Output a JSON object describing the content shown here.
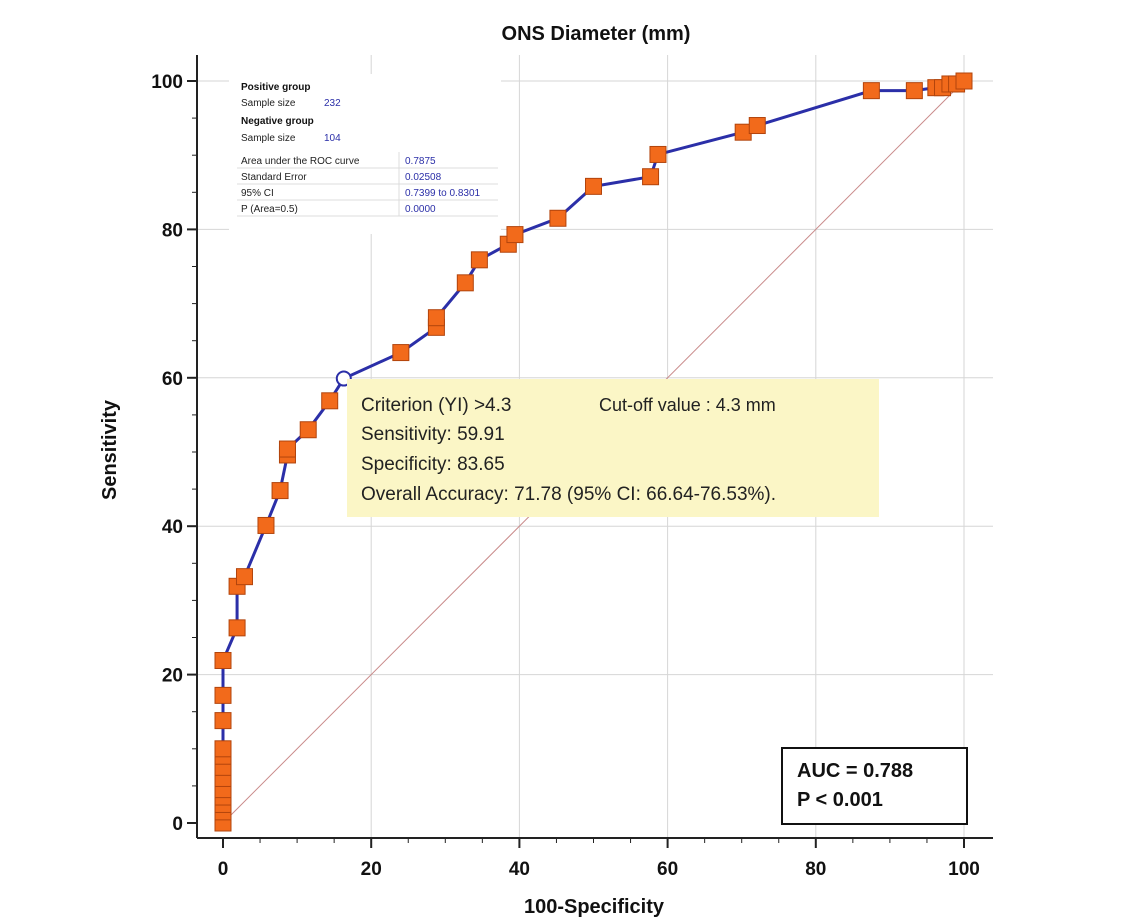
{
  "chart_data": {
    "type": "line",
    "title": "ONS Diameter (mm)",
    "xlabel": "100-Specificity",
    "ylabel": "Sensitivity",
    "xlim": [
      0,
      100
    ],
    "ylim": [
      0,
      100
    ],
    "xticks": [
      "0",
      "20",
      "40",
      "60",
      "80",
      "100"
    ],
    "yticks": [
      "0",
      "20",
      "40",
      "60",
      "80",
      "100"
    ],
    "grid": true,
    "line_color": "#2b2fa8",
    "marker_color": "#f26a1b",
    "reference_line_color": "#c98a8a",
    "series": [
      {
        "points": [
          [
            0,
            0
          ],
          [
            0,
            1.5
          ],
          [
            0,
            2.5
          ],
          [
            0,
            3.5
          ],
          [
            0,
            4.5
          ],
          [
            0,
            6.0
          ],
          [
            0,
            7.5
          ],
          [
            0,
            9.0
          ],
          [
            0,
            10.0
          ],
          [
            0,
            13.8
          ],
          [
            0,
            17.2
          ],
          [
            0,
            21.9
          ],
          [
            1.9,
            26.3
          ],
          [
            1.9,
            31.9
          ],
          [
            2.9,
            33.2
          ],
          [
            5.8,
            40.1
          ],
          [
            7.7,
            44.8
          ],
          [
            8.7,
            49.6
          ],
          [
            8.7,
            50.4
          ],
          [
            11.5,
            53.0
          ],
          [
            14.4,
            56.9
          ],
          [
            16.3,
            59.9
          ],
          [
            24.0,
            63.4
          ],
          [
            28.8,
            66.8
          ],
          [
            28.8,
            68.1
          ],
          [
            32.7,
            72.8
          ],
          [
            34.6,
            75.9
          ],
          [
            38.5,
            78.0
          ],
          [
            39.4,
            79.3
          ],
          [
            45.2,
            81.5
          ],
          [
            50.0,
            85.8
          ],
          [
            57.7,
            87.1
          ],
          [
            58.7,
            90.1
          ],
          [
            70.2,
            93.1
          ],
          [
            72.1,
            94.0
          ],
          [
            87.5,
            98.7
          ],
          [
            93.3,
            98.7
          ],
          [
            96.2,
            99.1
          ],
          [
            97.1,
            99.1
          ],
          [
            98.1,
            99.6
          ],
          [
            99.0,
            99.6
          ],
          [
            100,
            100
          ]
        ]
      }
    ],
    "criterion_point": [
      16.3,
      59.9
    ]
  },
  "stats_table": {
    "positive_header": "Positive group",
    "positive_sample_label": "Sample size",
    "positive_sample_value": "232",
    "negative_header": "Negative group",
    "negative_sample_label": "Sample size",
    "negative_sample_value": "104",
    "rows": [
      {
        "label": "Area under the ROC curve",
        "value": "0.7875"
      },
      {
        "label": "Standard Error",
        "value": "0.02508"
      },
      {
        "label": "95% CI",
        "value": "0.7399 to 0.8301"
      },
      {
        "label": "P (Area=0.5)",
        "value": "0.0000"
      }
    ]
  },
  "annotation": {
    "criterion": "Criterion (YI) >4.3",
    "cutoff": "Cut-off value : 4.3 mm",
    "sensitivity": "Sensitivity: 59.91",
    "specificity": "Specificity: 83.65",
    "accuracy": "Overall Accuracy: 71.78 (95% CI: 66.64-76.53%).",
    "background": "#fbf6c6"
  },
  "auc_box": {
    "auc": "AUC = 0.788",
    "p": "P < 0.001"
  }
}
